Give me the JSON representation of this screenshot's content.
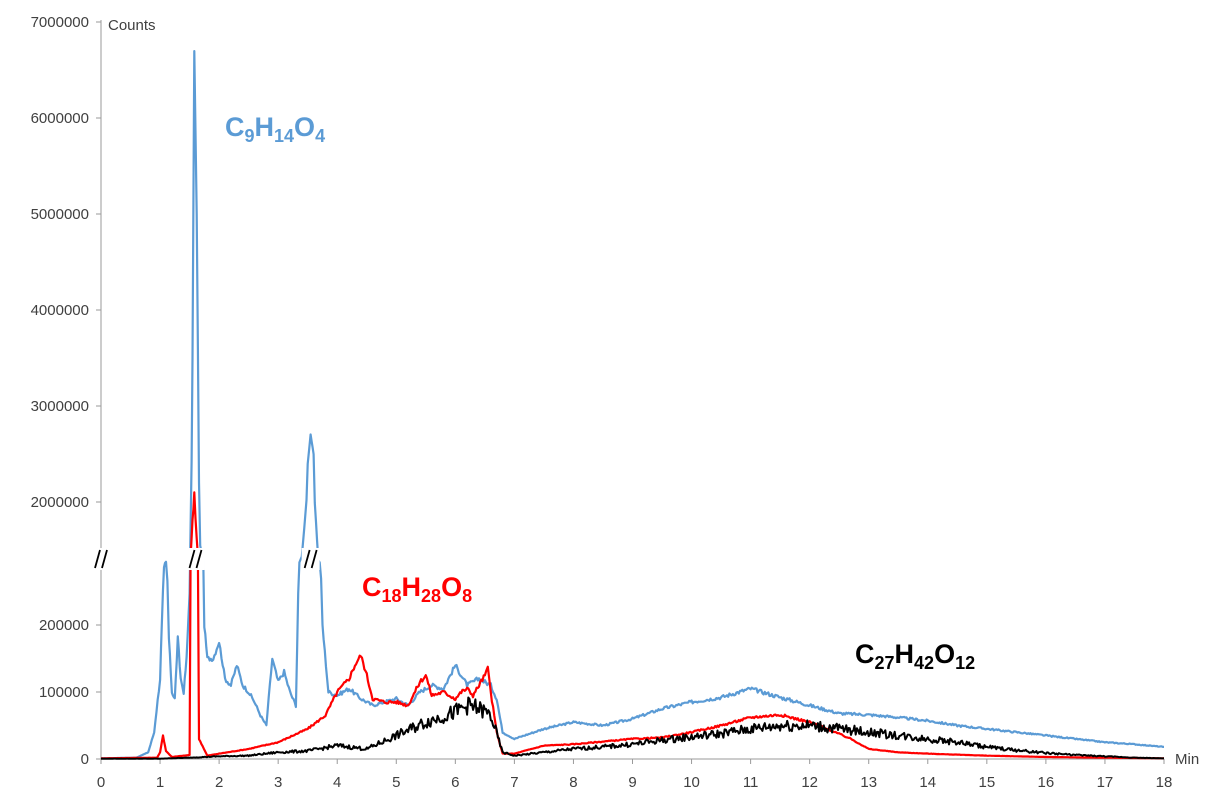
{
  "chart_data": {
    "type": "line",
    "ylabel": "Counts",
    "xlabel": "Min",
    "xlim": [
      0,
      18
    ],
    "x_ticks": [
      "0",
      "1",
      "2",
      "3",
      "4",
      "5",
      "6",
      "7",
      "8",
      "9",
      "10",
      "11",
      "12",
      "13",
      "14",
      "15",
      "16",
      "17",
      "18"
    ],
    "y_axis_break": {
      "lower_range": [
        0,
        250000
      ],
      "upper_range": [
        2000000,
        7000000
      ]
    },
    "y_ticks_lower": [
      "0",
      "100000",
      "200000"
    ],
    "y_ticks_upper": [
      "2000000",
      "3000000",
      "4000000",
      "5000000",
      "6000000",
      "7000000"
    ],
    "y_tick_values_lower": [
      0,
      100000,
      200000
    ],
    "y_tick_values_upper": [
      2000000,
      3000000,
      4000000,
      5000000,
      6000000,
      7000000
    ],
    "break_marks": [
      "//",
      "//",
      "//",
      "//"
    ],
    "series": [
      {
        "name": "C9H14O4",
        "label": {
          "base": [
            "C",
            "H",
            "O"
          ],
          "sub": [
            "9",
            "14",
            "4"
          ]
        },
        "color": "#5b9bd5",
        "points": [
          [
            0,
            1000
          ],
          [
            0.6,
            2000
          ],
          [
            0.8,
            10000
          ],
          [
            0.9,
            40000
          ],
          [
            1.0,
            120000
          ],
          [
            1.05,
            250000
          ],
          [
            1.1,
            350000
          ],
          [
            1.15,
            180000
          ],
          [
            1.2,
            100000
          ],
          [
            1.25,
            90000
          ],
          [
            1.3,
            180000
          ],
          [
            1.35,
            120000
          ],
          [
            1.4,
            100000
          ],
          [
            1.45,
            150000
          ],
          [
            1.5,
            250000
          ],
          [
            1.55,
            3500000
          ],
          [
            1.58,
            6700000
          ],
          [
            1.62,
            5000000
          ],
          [
            1.68,
            800000
          ],
          [
            1.75,
            200000
          ],
          [
            1.8,
            150000
          ],
          [
            1.9,
            150000
          ],
          [
            2.0,
            175000
          ],
          [
            2.1,
            120000
          ],
          [
            2.2,
            110000
          ],
          [
            2.3,
            140000
          ],
          [
            2.4,
            110000
          ],
          [
            2.5,
            100000
          ],
          [
            2.6,
            85000
          ],
          [
            2.7,
            65000
          ],
          [
            2.8,
            50000
          ],
          [
            2.9,
            150000
          ],
          [
            3.0,
            115000
          ],
          [
            3.1,
            130000
          ],
          [
            3.2,
            100000
          ],
          [
            3.3,
            80000
          ],
          [
            3.4,
            500000
          ],
          [
            3.5,
            2400000
          ],
          [
            3.55,
            2700000
          ],
          [
            3.6,
            2500000
          ],
          [
            3.68,
            400000
          ],
          [
            3.75,
            200000
          ],
          [
            3.85,
            100000
          ],
          [
            4.0,
            95000
          ],
          [
            4.2,
            105000
          ],
          [
            4.4,
            90000
          ],
          [
            4.6,
            80000
          ],
          [
            4.8,
            85000
          ],
          [
            5.0,
            90000
          ],
          [
            5.2,
            80000
          ],
          [
            5.4,
            100000
          ],
          [
            5.6,
            110000
          ],
          [
            5.8,
            105000
          ],
          [
            6.0,
            140000
          ],
          [
            6.2,
            110000
          ],
          [
            6.4,
            120000
          ],
          [
            6.6,
            110000
          ],
          [
            6.7,
            90000
          ],
          [
            6.8,
            40000
          ],
          [
            7.0,
            30000
          ],
          [
            7.5,
            45000
          ],
          [
            8.0,
            55000
          ],
          [
            8.5,
            50000
          ],
          [
            9.0,
            60000
          ],
          [
            9.5,
            75000
          ],
          [
            10.0,
            85000
          ],
          [
            10.5,
            92000
          ],
          [
            11.0,
            105000
          ],
          [
            11.5,
            92000
          ],
          [
            12.0,
            80000
          ],
          [
            12.5,
            68000
          ],
          [
            13.0,
            66000
          ],
          [
            13.5,
            62000
          ],
          [
            14.0,
            57000
          ],
          [
            14.5,
            50000
          ],
          [
            15.0,
            45000
          ],
          [
            15.5,
            40000
          ],
          [
            16.0,
            35000
          ],
          [
            16.5,
            30000
          ],
          [
            17.0,
            25000
          ],
          [
            17.5,
            22000
          ],
          [
            18.0,
            18000
          ]
        ]
      },
      {
        "name": "C18H28O8",
        "label": {
          "base": [
            "C",
            "H",
            "O"
          ],
          "sub": [
            "18",
            "28",
            "8"
          ]
        },
        "color": "#ff0000",
        "points": [
          [
            0,
            1000
          ],
          [
            0.95,
            2000
          ],
          [
            1.0,
            10000
          ],
          [
            1.05,
            35000
          ],
          [
            1.1,
            12000
          ],
          [
            1.2,
            3000
          ],
          [
            1.5,
            6000
          ],
          [
            1.55,
            1500000
          ],
          [
            1.58,
            2100000
          ],
          [
            1.62,
            1000000
          ],
          [
            1.66,
            30000
          ],
          [
            1.8,
            5000
          ],
          [
            2.0,
            8000
          ],
          [
            2.5,
            15000
          ],
          [
            3.0,
            25000
          ],
          [
            3.5,
            45000
          ],
          [
            3.8,
            65000
          ],
          [
            4.0,
            100000
          ],
          [
            4.2,
            120000
          ],
          [
            4.3,
            140000
          ],
          [
            4.4,
            155000
          ],
          [
            4.5,
            125000
          ],
          [
            4.6,
            90000
          ],
          [
            4.8,
            85000
          ],
          [
            5.0,
            85000
          ],
          [
            5.2,
            80000
          ],
          [
            5.4,
            115000
          ],
          [
            5.5,
            125000
          ],
          [
            5.6,
            95000
          ],
          [
            5.8,
            100000
          ],
          [
            6.0,
            90000
          ],
          [
            6.1,
            100000
          ],
          [
            6.2,
            105000
          ],
          [
            6.3,
            95000
          ],
          [
            6.4,
            110000
          ],
          [
            6.5,
            125000
          ],
          [
            6.55,
            135000
          ],
          [
            6.6,
            100000
          ],
          [
            6.7,
            40000
          ],
          [
            6.8,
            8000
          ],
          [
            7.0,
            8000
          ],
          [
            7.5,
            20000
          ],
          [
            8.0,
            22000
          ],
          [
            8.5,
            26000
          ],
          [
            9.0,
            30000
          ],
          [
            9.5,
            32000
          ],
          [
            10.0,
            40000
          ],
          [
            10.5,
            50000
          ],
          [
            11.0,
            62000
          ],
          [
            11.5,
            66000
          ],
          [
            12.0,
            55000
          ],
          [
            12.3,
            45000
          ],
          [
            12.7,
            30000
          ],
          [
            13.0,
            15000
          ],
          [
            13.5,
            10000
          ],
          [
            14.0,
            8000
          ],
          [
            15.0,
            5000
          ],
          [
            16.0,
            3000
          ],
          [
            17.0,
            2000
          ],
          [
            18.0,
            1000
          ]
        ]
      },
      {
        "name": "C27H42O12",
        "label": {
          "base": [
            "C",
            "H",
            "O"
          ],
          "sub": [
            "27",
            "42",
            "12"
          ]
        },
        "color": "#000000",
        "points": [
          [
            0,
            500
          ],
          [
            1.0,
            500
          ],
          [
            1.5,
            2000
          ],
          [
            2.0,
            4000
          ],
          [
            2.5,
            5000
          ],
          [
            3.0,
            10000
          ],
          [
            3.5,
            12000
          ],
          [
            4.0,
            20000
          ],
          [
            4.5,
            15000
          ],
          [
            5.0,
            35000
          ],
          [
            5.5,
            55000
          ],
          [
            6.0,
            70000
          ],
          [
            6.2,
            80000
          ],
          [
            6.4,
            75000
          ],
          [
            6.6,
            65000
          ],
          [
            6.8,
            10000
          ],
          [
            7.0,
            5000
          ],
          [
            7.5,
            10000
          ],
          [
            8.0,
            15000
          ],
          [
            8.5,
            18000
          ],
          [
            9.0,
            22000
          ],
          [
            9.5,
            28000
          ],
          [
            10.0,
            33000
          ],
          [
            10.5,
            38000
          ],
          [
            11.0,
            45000
          ],
          [
            11.5,
            50000
          ],
          [
            12.0,
            50000
          ],
          [
            12.5,
            45000
          ],
          [
            13.0,
            40000
          ],
          [
            13.5,
            35000
          ],
          [
            14.0,
            30000
          ],
          [
            14.5,
            25000
          ],
          [
            15.0,
            18000
          ],
          [
            15.5,
            13000
          ],
          [
            16.0,
            9000
          ],
          [
            16.5,
            6000
          ],
          [
            17.0,
            4000
          ],
          [
            17.5,
            2000
          ],
          [
            18.0,
            1000
          ]
        ]
      }
    ]
  }
}
